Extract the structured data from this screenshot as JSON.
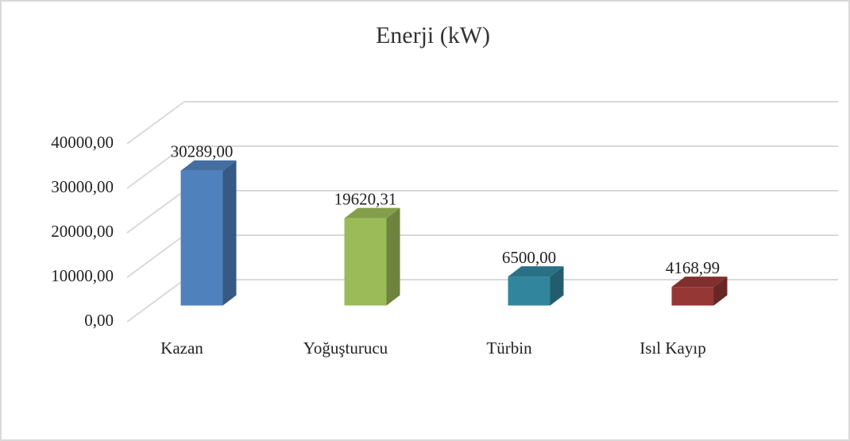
{
  "chart_data": {
    "type": "bar3d",
    "title": "Enerji (kW)",
    "categories": [
      "Kazan",
      "Yoğuşturucu",
      "Türbin",
      "Isıl Kayıp"
    ],
    "values": [
      30289,
      19620.31,
      6500,
      4168.99
    ],
    "value_labels": [
      "30289,00",
      "19620,31",
      "6500,00",
      "4168,99"
    ],
    "colors": [
      "#4f81bd",
      "#9bbb59",
      "#31859c",
      "#953735"
    ],
    "ylim": [
      0,
      40000
    ],
    "yticks": [
      {
        "value": 0,
        "label": "0,00"
      },
      {
        "value": 10000,
        "label": "10000,00"
      },
      {
        "value": 20000,
        "label": "20000,00"
      },
      {
        "value": 30000,
        "label": "30000,00"
      },
      {
        "value": 40000,
        "label": "40000,00"
      }
    ],
    "grid": true
  }
}
